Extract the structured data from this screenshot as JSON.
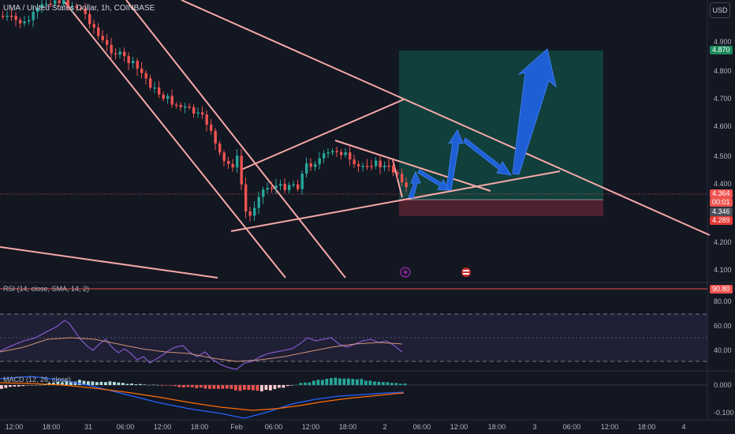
{
  "header": {
    "symbol_title": "UMA / United States Dollar, 1h, COINBASE",
    "currency_button": "USD"
  },
  "price_axis": {
    "labels": [
      "4.900",
      "4.800",
      "4.700",
      "4.600",
      "4.500",
      "4.400",
      "4.200",
      "4.100"
    ],
    "target_badge": "4.870",
    "current_price_badge": "4.364",
    "countdown_badge": "00:01",
    "entry_badge": "4.346",
    "stop_badge": "4.289"
  },
  "rsi_panel": {
    "label": "RSI (14, close, SMA, 14, 2)",
    "badge": "90.80",
    "axis_labels": [
      "80.00",
      "60.00",
      "40.00"
    ]
  },
  "macd_panel": {
    "label": "MACD (12, 26, close)",
    "axis_labels": [
      "0.000",
      "-0.100"
    ]
  },
  "time_axis": {
    "labels": [
      "12:00",
      "18:00",
      "31",
      "06:00",
      "12:00",
      "18:00",
      "Feb",
      "06:00",
      "12:00",
      "18:00",
      "2",
      "06:00",
      "12:00",
      "18:00",
      "3",
      "06:00",
      "12:00",
      "18:00",
      "4"
    ]
  },
  "colors": {
    "background": "#131722",
    "bull_candle": "#26a69a",
    "bear_candle": "#ef5350",
    "trendline": "#f7a9a8",
    "arrow": "#1e5fd6",
    "target_zone": "#124e45",
    "stop_zone": "#5b2230"
  },
  "icons": [
    "lightning-icon",
    "earnings-flag-icon"
  ]
}
